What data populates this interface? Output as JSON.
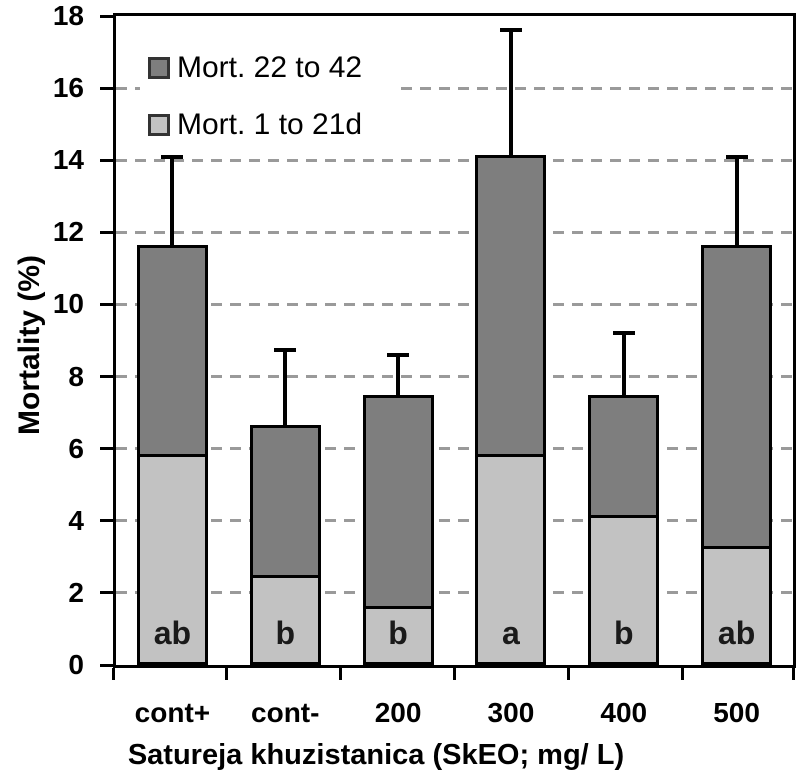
{
  "chart_data": {
    "type": "bar",
    "subtype": "stacked-vertical-with-error-bars",
    "title": "",
    "xlabel": "Satureja khuzistanica (SkEO; mg/ L)",
    "ylabel": "Mortality (%)",
    "ylim": [
      0,
      18
    ],
    "ytick_step": 2,
    "ytick_labels": [
      "0",
      "2",
      "4",
      "6",
      "8",
      "10",
      "12",
      "14",
      "16",
      "18"
    ],
    "grid": "horizontal dashed gray at every 2 units",
    "categories": [
      "cont+",
      "cont-",
      "200",
      "300",
      "400",
      "500"
    ],
    "series": [
      {
        "name": "Mort. 1 to 21d",
        "color": "#c2c2c2",
        "values": [
          5.85,
          2.5,
          1.65,
          5.85,
          4.15,
          3.3
        ]
      },
      {
        "name": "Mort. 22 to 42",
        "color": "#7e7e7e",
        "values": [
          5.8,
          4.15,
          5.85,
          8.3,
          3.35,
          8.35
        ]
      }
    ],
    "stack_totals": [
      11.65,
      6.65,
      7.5,
      14.15,
      7.5,
      11.65
    ],
    "error_bar_tops": [
      14.1,
      8.75,
      8.6,
      17.6,
      9.2,
      14.1
    ],
    "bar_letters": [
      "ab",
      "b",
      "b",
      "a",
      "b",
      "ab"
    ],
    "legend": {
      "position": "top-left-inside",
      "entries": [
        "Mort. 22 to 42",
        "Mort. 1 to 21d"
      ]
    },
    "colors": {
      "dark_series": "#7e7e7e",
      "light_series": "#c2c2c2",
      "gridline": "#9a9a9a",
      "axis": "#000000",
      "background": "#ffffff"
    }
  }
}
